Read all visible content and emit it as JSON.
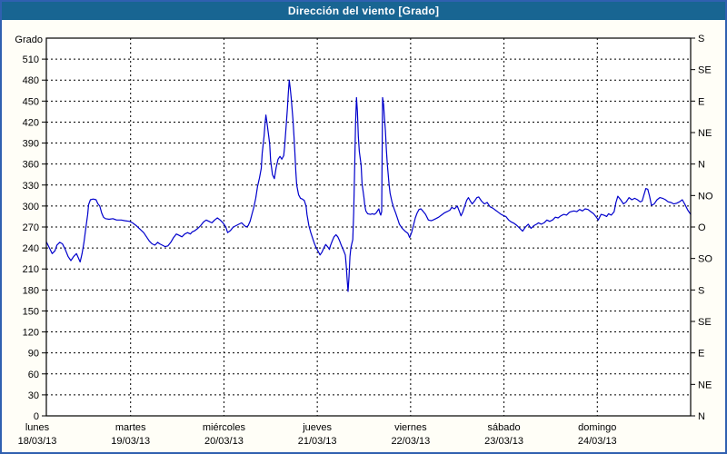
{
  "window": {
    "title": "Dirección del viento [Grado]"
  },
  "colors": {
    "titlebar_bg": "#186592",
    "title_text": "#ffffff",
    "window_border": "#3060b0",
    "plot_bg": "#fffef7",
    "grid": "#000000",
    "axis": "#000000",
    "label_text": "#000000",
    "line": "#0000cc"
  },
  "chart_data": {
    "type": "line",
    "title": "Dirección del viento [Grado]",
    "grid": "dashed",
    "y_axis_left": {
      "label": "Grado",
      "min": 0,
      "max": 540,
      "tick_step": 30
    },
    "y_axis_right": {
      "tick_step": 45,
      "labels_bottom_to_top": [
        "N",
        "NE",
        "E",
        "SE",
        "S",
        "SO",
        "O",
        "NO",
        "N",
        "NE",
        "E",
        "SE",
        "S"
      ]
    },
    "x_axis": {
      "unit": "days",
      "range_days": 7,
      "days": [
        {
          "name": "lunes",
          "date": "18/03/13"
        },
        {
          "name": "martes",
          "date": "19/03/13"
        },
        {
          "name": "miércoles",
          "date": "20/03/13"
        },
        {
          "name": "jueves",
          "date": "21/03/13"
        },
        {
          "name": "viernes",
          "date": "22/03/13"
        },
        {
          "name": "sábado",
          "date": "23/03/13"
        },
        {
          "name": "domingo",
          "date": "24/03/13"
        }
      ]
    },
    "series": [
      {
        "name": "Dirección del viento",
        "color": "#0000cc",
        "points": [
          [
            0.1,
            248
          ],
          [
            0.13,
            240
          ],
          [
            0.16,
            232
          ],
          [
            0.19,
            236
          ],
          [
            0.21,
            244
          ],
          [
            0.24,
            248
          ],
          [
            0.27,
            246
          ],
          [
            0.3,
            238
          ],
          [
            0.33,
            228
          ],
          [
            0.36,
            222
          ],
          [
            0.39,
            228
          ],
          [
            0.42,
            232
          ],
          [
            0.44,
            226
          ],
          [
            0.46,
            220
          ],
          [
            0.48,
            232
          ],
          [
            0.5,
            248
          ],
          [
            0.52,
            268
          ],
          [
            0.54,
            288
          ],
          [
            0.55,
            302
          ],
          [
            0.57,
            309
          ],
          [
            0.6,
            310
          ],
          [
            0.63,
            309
          ],
          [
            0.65,
            303
          ],
          [
            0.67,
            300
          ],
          [
            0.69,
            290
          ],
          [
            0.71,
            284
          ],
          [
            0.73,
            282
          ],
          [
            0.77,
            281
          ],
          [
            0.81,
            282
          ],
          [
            0.85,
            280
          ],
          [
            0.9,
            280
          ],
          [
            0.94,
            279
          ],
          [
            0.99,
            278
          ],
          [
            1.02,
            276
          ],
          [
            1.06,
            272
          ],
          [
            1.1,
            267
          ],
          [
            1.14,
            262
          ],
          [
            1.17,
            256
          ],
          [
            1.2,
            250
          ],
          [
            1.23,
            246
          ],
          [
            1.26,
            244
          ],
          [
            1.29,
            248
          ],
          [
            1.31,
            246
          ],
          [
            1.34,
            244
          ],
          [
            1.37,
            242
          ],
          [
            1.4,
            243
          ],
          [
            1.43,
            248
          ],
          [
            1.46,
            255
          ],
          [
            1.49,
            260
          ],
          [
            1.52,
            258
          ],
          [
            1.55,
            256
          ],
          [
            1.58,
            260
          ],
          [
            1.61,
            262
          ],
          [
            1.64,
            260
          ],
          [
            1.66,
            263
          ],
          [
            1.69,
            265
          ],
          [
            1.72,
            268
          ],
          [
            1.75,
            272
          ],
          [
            1.78,
            277
          ],
          [
            1.81,
            280
          ],
          [
            1.84,
            278
          ],
          [
            1.87,
            276
          ],
          [
            1.9,
            280
          ],
          [
            1.93,
            283
          ],
          [
            1.96,
            280
          ],
          [
            1.99,
            276
          ],
          [
            2.02,
            270
          ],
          [
            2.04,
            262
          ],
          [
            2.07,
            265
          ],
          [
            2.1,
            270
          ],
          [
            2.13,
            272
          ],
          [
            2.16,
            274
          ],
          [
            2.19,
            276
          ],
          [
            2.22,
            272
          ],
          [
            2.24,
            270
          ],
          [
            2.26,
            272
          ],
          [
            2.28,
            278
          ],
          [
            2.3,
            288
          ],
          [
            2.32,
            298
          ],
          [
            2.34,
            311
          ],
          [
            2.36,
            328
          ],
          [
            2.38,
            340
          ],
          [
            2.4,
            354
          ],
          [
            2.41,
            375
          ],
          [
            2.43,
            400
          ],
          [
            2.44,
            417
          ],
          [
            2.45,
            430
          ],
          [
            2.46,
            420
          ],
          [
            2.48,
            400
          ],
          [
            2.49,
            388
          ],
          [
            2.5,
            365
          ],
          [
            2.52,
            345
          ],
          [
            2.54,
            339
          ],
          [
            2.56,
            355
          ],
          [
            2.58,
            367
          ],
          [
            2.6,
            371
          ],
          [
            2.62,
            367
          ],
          [
            2.64,
            372
          ],
          [
            2.65,
            385
          ],
          [
            2.67,
            420
          ],
          [
            2.68,
            440
          ],
          [
            2.69,
            462
          ],
          [
            2.7,
            480
          ],
          [
            2.71,
            468
          ],
          [
            2.72,
            455
          ],
          [
            2.74,
            423
          ],
          [
            2.75,
            400
          ],
          [
            2.76,
            376
          ],
          [
            2.77,
            350
          ],
          [
            2.78,
            330
          ],
          [
            2.8,
            316
          ],
          [
            2.82,
            311
          ],
          [
            2.84,
            310
          ],
          [
            2.86,
            308
          ],
          [
            2.88,
            300
          ],
          [
            2.89,
            288
          ],
          [
            2.91,
            272
          ],
          [
            2.93,
            262
          ],
          [
            2.95,
            254
          ],
          [
            2.97,
            246
          ],
          [
            2.99,
            240
          ],
          [
            3.01,
            235
          ],
          [
            3.03,
            230
          ],
          [
            3.05,
            234
          ],
          [
            3.07,
            240
          ],
          [
            3.09,
            245
          ],
          [
            3.11,
            242
          ],
          [
            3.13,
            238
          ],
          [
            3.14,
            243
          ],
          [
            3.16,
            250
          ],
          [
            3.18,
            256
          ],
          [
            3.2,
            259
          ],
          [
            3.22,
            256
          ],
          [
            3.24,
            250
          ],
          [
            3.26,
            243
          ],
          [
            3.28,
            237
          ],
          [
            3.3,
            230
          ],
          [
            3.31,
            215
          ],
          [
            3.32,
            195
          ],
          [
            3.33,
            178
          ],
          [
            3.34,
            200
          ],
          [
            3.35,
            228
          ],
          [
            3.36,
            240
          ],
          [
            3.37,
            246
          ],
          [
            3.38,
            252
          ],
          [
            3.39,
            290
          ],
          [
            3.4,
            350
          ],
          [
            3.41,
            420
          ],
          [
            3.42,
            455
          ],
          [
            3.43,
            435
          ],
          [
            3.44,
            400
          ],
          [
            3.45,
            378
          ],
          [
            3.47,
            358
          ],
          [
            3.48,
            332
          ],
          [
            3.5,
            312
          ],
          [
            3.51,
            300
          ],
          [
            3.52,
            293
          ],
          [
            3.54,
            289
          ],
          [
            3.57,
            288
          ],
          [
            3.59,
            289
          ],
          [
            3.61,
            288
          ],
          [
            3.63,
            290
          ],
          [
            3.65,
            294
          ],
          [
            3.66,
            296
          ],
          [
            3.67,
            290
          ],
          [
            3.68,
            287
          ],
          [
            3.69,
            292
          ],
          [
            3.7,
            455
          ],
          [
            3.71,
            445
          ],
          [
            3.72,
            425
          ],
          [
            3.73,
            408
          ],
          [
            3.74,
            380
          ],
          [
            3.75,
            360
          ],
          [
            3.77,
            330
          ],
          [
            3.78,
            318
          ],
          [
            3.8,
            306
          ],
          [
            3.82,
            297
          ],
          [
            3.84,
            290
          ],
          [
            3.86,
            282
          ],
          [
            3.88,
            274
          ],
          [
            3.91,
            268
          ],
          [
            3.94,
            264
          ],
          [
            3.97,
            261
          ],
          [
            3.99,
            255
          ],
          [
            4.01,
            262
          ],
          [
            4.03,
            272
          ],
          [
            4.05,
            283
          ],
          [
            4.07,
            290
          ],
          [
            4.09,
            295
          ],
          [
            4.11,
            296
          ],
          [
            4.13,
            293
          ],
          [
            4.16,
            288
          ],
          [
            4.19,
            280
          ],
          [
            4.22,
            279
          ],
          [
            4.24,
            280
          ],
          [
            4.27,
            282
          ],
          [
            4.3,
            284
          ],
          [
            4.33,
            287
          ],
          [
            4.36,
            290
          ],
          [
            4.39,
            292
          ],
          [
            4.42,
            294
          ],
          [
            4.44,
            298
          ],
          [
            4.47,
            296
          ],
          [
            4.5,
            300
          ],
          [
            4.52,
            293
          ],
          [
            4.54,
            286
          ],
          [
            4.56,
            292
          ],
          [
            4.58,
            300
          ],
          [
            4.6,
            308
          ],
          [
            4.62,
            312
          ],
          [
            4.64,
            307
          ],
          [
            4.66,
            303
          ],
          [
            4.69,
            308
          ],
          [
            4.71,
            312
          ],
          [
            4.73,
            313
          ],
          [
            4.76,
            307
          ],
          [
            4.79,
            303
          ],
          [
            4.82,
            305
          ],
          [
            4.85,
            299
          ],
          [
            4.88,
            297
          ],
          [
            4.91,
            294
          ],
          [
            4.94,
            291
          ],
          [
            4.97,
            288
          ],
          [
            5.0,
            286
          ],
          [
            5.02,
            285
          ],
          [
            5.05,
            280
          ],
          [
            5.08,
            277
          ],
          [
            5.11,
            275
          ],
          [
            5.14,
            272
          ],
          [
            5.17,
            268
          ],
          [
            5.2,
            264
          ],
          [
            5.23,
            270
          ],
          [
            5.26,
            274
          ],
          [
            5.29,
            268
          ],
          [
            5.32,
            272
          ],
          [
            5.35,
            274
          ],
          [
            5.37,
            276
          ],
          [
            5.4,
            274
          ],
          [
            5.43,
            276
          ],
          [
            5.46,
            280
          ],
          [
            5.49,
            278
          ],
          [
            5.52,
            280
          ],
          [
            5.55,
            284
          ],
          [
            5.58,
            283
          ],
          [
            5.61,
            286
          ],
          [
            5.64,
            288
          ],
          [
            5.67,
            287
          ],
          [
            5.7,
            291
          ],
          [
            5.72,
            292
          ],
          [
            5.75,
            293
          ],
          [
            5.78,
            292
          ],
          [
            5.81,
            295
          ],
          [
            5.84,
            293
          ],
          [
            5.87,
            296
          ],
          [
            5.9,
            295
          ],
          [
            5.93,
            292
          ],
          [
            5.96,
            289
          ],
          [
            5.99,
            284
          ],
          [
            6.01,
            280
          ],
          [
            6.04,
            288
          ],
          [
            6.07,
            287
          ],
          [
            6.1,
            285
          ],
          [
            6.12,
            289
          ],
          [
            6.15,
            287
          ],
          [
            6.18,
            292
          ],
          [
            6.2,
            305
          ],
          [
            6.22,
            314
          ],
          [
            6.25,
            309
          ],
          [
            6.28,
            303
          ],
          [
            6.31,
            306
          ],
          [
            6.34,
            312
          ],
          [
            6.37,
            309
          ],
          [
            6.4,
            311
          ],
          [
            6.43,
            309
          ],
          [
            6.46,
            306
          ],
          [
            6.48,
            307
          ],
          [
            6.5,
            316
          ],
          [
            6.52,
            325
          ],
          [
            6.54,
            324
          ],
          [
            6.56,
            314
          ],
          [
            6.58,
            301
          ],
          [
            6.61,
            303
          ],
          [
            6.64,
            309
          ],
          [
            6.67,
            312
          ],
          [
            6.7,
            311
          ],
          [
            6.73,
            309
          ],
          [
            6.76,
            306
          ],
          [
            6.79,
            305
          ],
          [
            6.82,
            303
          ],
          [
            6.85,
            304
          ],
          [
            6.88,
            306
          ],
          [
            6.91,
            309
          ],
          [
            6.94,
            302
          ],
          [
            6.97,
            294
          ],
          [
            7.0,
            288
          ]
        ]
      }
    ]
  }
}
